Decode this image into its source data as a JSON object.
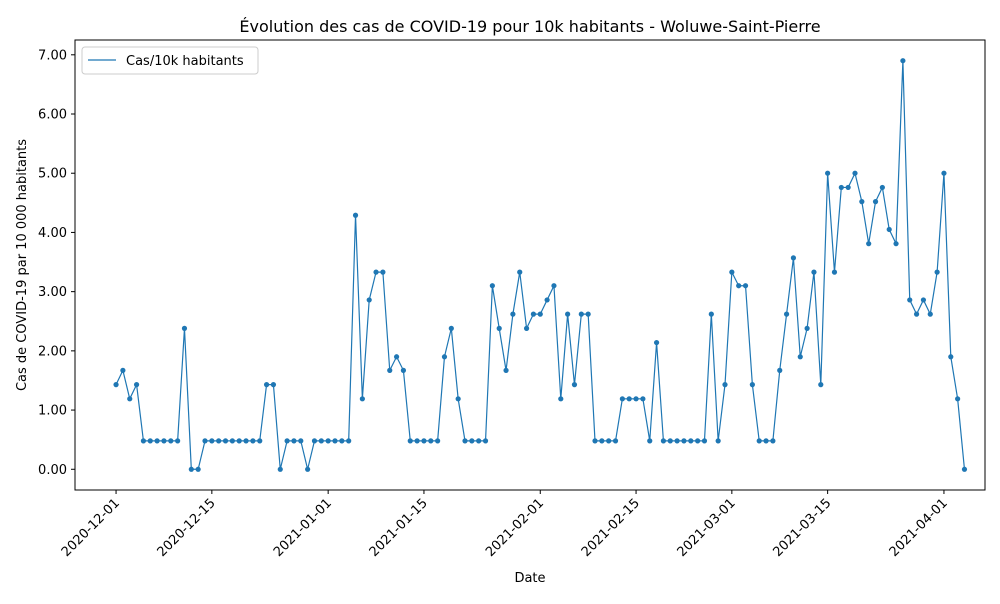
{
  "chart_data": {
    "type": "line",
    "title": "Évolution des cas de COVID-19 pour 10k habitants - Woluwe-Saint-Pierre",
    "xlabel": "Date",
    "ylabel": "Cas de COVID-19 par 10 000 habitants",
    "x_start": "2020-12-01",
    "x_ticks": [
      "2020-12-01",
      "2020-12-15",
      "2021-01-01",
      "2021-01-15",
      "2021-02-01",
      "2021-02-15",
      "2021-03-01",
      "2021-03-15",
      "2021-04-01"
    ],
    "y_ticks": [
      "0.00",
      "1.00",
      "2.00",
      "3.00",
      "4.00",
      "5.00",
      "6.00",
      "7.00"
    ],
    "ylim": [
      -0.35,
      7.25
    ],
    "xlim": [
      "2020-11-25",
      "2021-04-07"
    ],
    "grid": false,
    "legend_position": "top-left",
    "series": [
      {
        "name": "Cas/10k habitants",
        "color": "#1f77b4",
        "values": [
          1.43,
          1.67,
          1.19,
          1.43,
          0.48,
          0.48,
          0.48,
          0.48,
          0.48,
          0.48,
          2.38,
          0.0,
          0.0,
          0.48,
          0.48,
          0.48,
          0.48,
          0.48,
          0.48,
          0.48,
          0.48,
          0.48,
          1.43,
          1.43,
          0.0,
          0.48,
          0.48,
          0.48,
          0.0,
          0.48,
          0.48,
          0.48,
          0.48,
          0.48,
          0.48,
          4.29,
          1.19,
          2.86,
          3.33,
          3.33,
          1.67,
          1.9,
          1.67,
          0.48,
          0.48,
          0.48,
          0.48,
          0.48,
          1.9,
          2.38,
          1.19,
          0.48,
          0.48,
          0.48,
          0.48,
          3.1,
          2.38,
          1.67,
          2.62,
          3.33,
          2.38,
          2.62,
          2.62,
          2.86,
          3.1,
          1.19,
          2.62,
          1.43,
          2.62,
          2.62,
          0.48,
          0.48,
          0.48,
          0.48,
          1.19,
          1.19,
          1.19,
          1.19,
          0.48,
          2.14,
          0.48,
          0.48,
          0.48,
          0.48,
          0.48,
          0.48,
          0.48,
          2.62,
          0.48,
          1.43,
          3.33,
          3.1,
          3.1,
          1.43,
          0.48,
          0.48,
          0.48,
          1.67,
          2.62,
          3.57,
          1.9,
          2.38,
          3.33,
          1.43,
          5.0,
          3.33,
          4.76,
          4.76,
          5.0,
          4.52,
          3.81,
          4.52,
          4.76,
          4.05,
          3.81,
          6.9,
          2.86,
          2.62,
          2.86,
          2.62,
          3.33,
          5.0,
          1.9,
          1.19,
          0.0
        ]
      }
    ]
  }
}
